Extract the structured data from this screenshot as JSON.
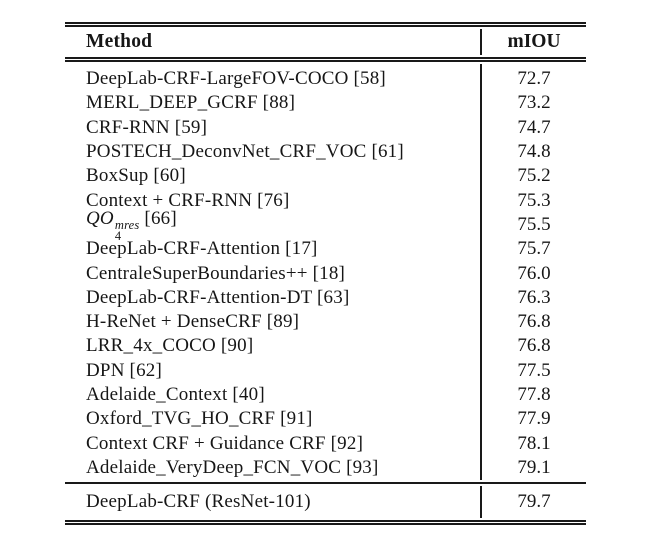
{
  "table": {
    "header": {
      "method": "Method",
      "miou": "mIOU"
    },
    "rows": [
      {
        "method": "DeepLab-CRF-LargeFOV-COCO [58]",
        "miou": "72.7"
      },
      {
        "method": "MERL_DEEP_GCRF [88]",
        "miou": "73.2"
      },
      {
        "method": "CRF-RNN [59]",
        "miou": "74.7"
      },
      {
        "method": "POSTECH_DeconvNet_CRF_VOC [61]",
        "miou": "74.8"
      },
      {
        "method": "BoxSup [60]",
        "miou": "75.2"
      },
      {
        "method": "Context + CRF-RNN [76]",
        "miou": "75.3"
      },
      {
        "method_base": "QO",
        "method_sup": "mres",
        "method_sub": "4",
        "method_ref": " [66]",
        "miou": "75.5"
      },
      {
        "method": "DeepLab-CRF-Attention [17]",
        "miou": "75.7"
      },
      {
        "method": "CentraleSuperBoundaries++ [18]",
        "miou": "76.0"
      },
      {
        "method": "DeepLab-CRF-Attention-DT [63]",
        "miou": "76.3"
      },
      {
        "method": "H-ReNet + DenseCRF [89]",
        "miou": "76.8"
      },
      {
        "method": "LRR_4x_COCO [90]",
        "miou": "76.8"
      },
      {
        "method": "DPN [62]",
        "miou": "77.5"
      },
      {
        "method": "Adelaide_Context [40]",
        "miou": "77.8"
      },
      {
        "method": "Oxford_TVG_HO_CRF [91]",
        "miou": "77.9"
      },
      {
        "method": "Context CRF + Guidance CRF [92]",
        "miou": "78.1"
      },
      {
        "method": "Adelaide_VeryDeep_FCN_VOC [93]",
        "miou": "79.1"
      }
    ],
    "footer_row": {
      "method": "DeepLab-CRF (ResNet-101)",
      "miou": "79.7"
    }
  },
  "colors": {
    "text": "#161616",
    "rule": "#191919",
    "background": "#ffffff"
  }
}
